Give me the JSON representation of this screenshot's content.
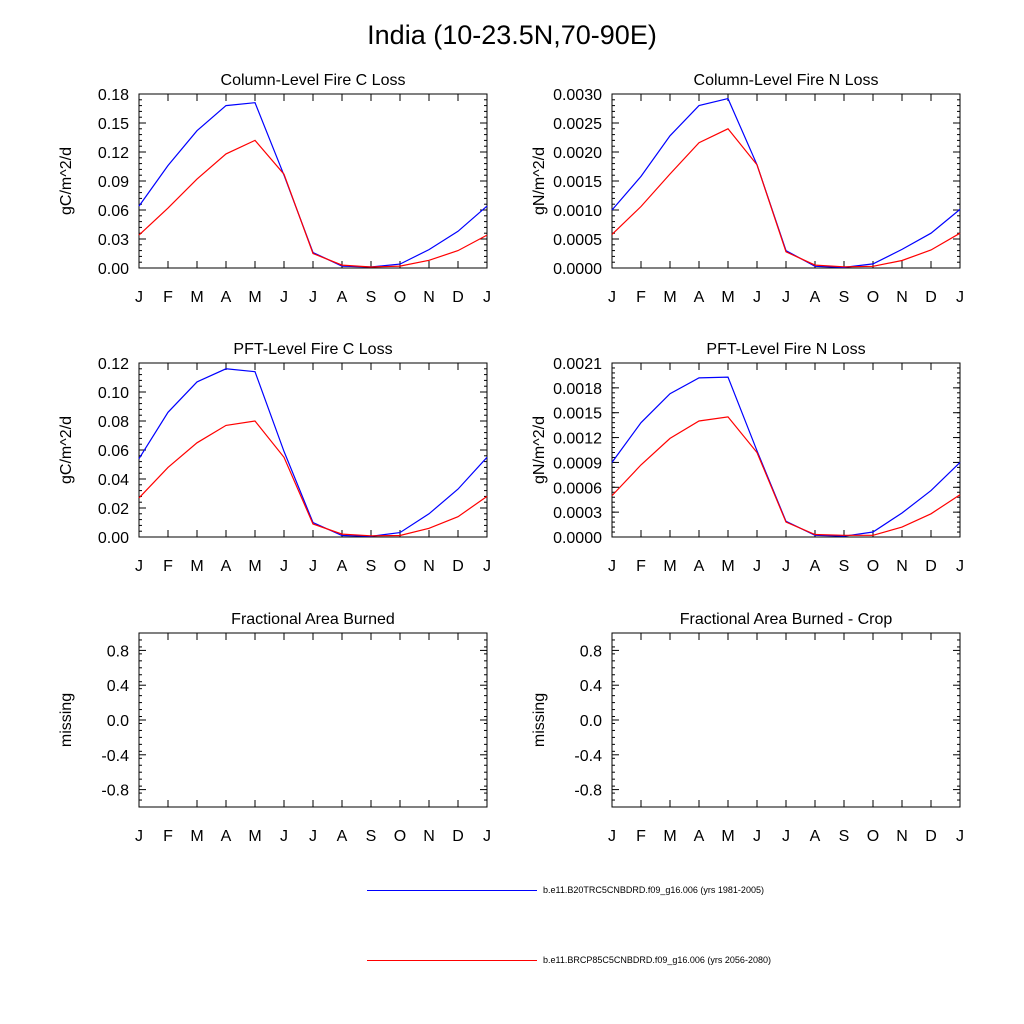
{
  "title": "India (10-23.5N,70-90E)",
  "months": [
    "J",
    "F",
    "M",
    "A",
    "M",
    "J",
    "J",
    "A",
    "S",
    "O",
    "N",
    "D",
    "J"
  ],
  "colors": {
    "series1": "#0000ff",
    "series2": "#ff0000"
  },
  "legend": [
    {
      "label": "b.e11.B20TRC5CNBDRD.f09_g16.006 (yrs 1981-2005)",
      "color": "#0000ff"
    },
    {
      "label": "b.e11.BRCP85C5CNBDRD.f09_g16.006 (yrs 2056-2080)",
      "color": "#ff0000"
    }
  ],
  "chart_data": [
    {
      "type": "line",
      "title": "Column-Level Fire C Loss",
      "ylabel": "gC/m^2/d",
      "ylim": [
        0,
        0.18
      ],
      "yticks": [
        "0.00",
        "0.03",
        "0.06",
        "0.09",
        "0.12",
        "0.15",
        "0.18"
      ],
      "yvalues": [
        0,
        0.03,
        0.06,
        0.09,
        0.12,
        0.15,
        0.18
      ],
      "series": [
        {
          "name": "b.e11.B20TRC5CNBDRD.f09_g16.006 (yrs 1981-2005)",
          "values": [
            0.064,
            0.106,
            0.142,
            0.168,
            0.171,
            0.096,
            0.016,
            0.002,
            0.001,
            0.004,
            0.019,
            0.038,
            0.064
          ]
        },
        {
          "name": "b.e11.BRCP85C5CNBDRD.f09_g16.006 (yrs 2056-2080)",
          "values": [
            0.034,
            0.062,
            0.092,
            0.118,
            0.132,
            0.097,
            0.015,
            0.003,
            0.001,
            0.002,
            0.008,
            0.018,
            0.034
          ]
        }
      ]
    },
    {
      "type": "line",
      "title": "Column-Level Fire N Loss",
      "ylabel": "gN/m^2/d",
      "ylim": [
        0,
        0.003
      ],
      "yticks": [
        "0.0000",
        "0.0005",
        "0.0010",
        "0.0015",
        "0.0020",
        "0.0025",
        "0.0030"
      ],
      "yvalues": [
        0,
        0.0005,
        0.001,
        0.0015,
        0.002,
        0.0025,
        0.003
      ],
      "series": [
        {
          "name": "b.e11.B20TRC5CNBDRD.f09_g16.006 (yrs 1981-2005)",
          "values": [
            0.001,
            0.00158,
            0.00228,
            0.0028,
            0.00292,
            0.00178,
            0.0003,
            3e-05,
            1e-05,
            7e-05,
            0.00032,
            0.0006,
            0.00101
          ]
        },
        {
          "name": "b.e11.BRCP85C5CNBDRD.f09_g16.006 (yrs 2056-2080)",
          "values": [
            0.00058,
            0.00106,
            0.00162,
            0.00216,
            0.0024,
            0.00178,
            0.00028,
            5e-05,
            2e-05,
            3e-05,
            0.00013,
            0.00031,
            0.0006
          ]
        }
      ]
    },
    {
      "type": "line",
      "title": "PFT-Level Fire C Loss",
      "ylabel": "gC/m^2/d",
      "ylim": [
        0,
        0.12
      ],
      "yticks": [
        "0.00",
        "0.02",
        "0.04",
        "0.06",
        "0.08",
        "0.10",
        "0.12"
      ],
      "yvalues": [
        0,
        0.02,
        0.04,
        0.06,
        0.08,
        0.1,
        0.12
      ],
      "series": [
        {
          "name": "b.e11.B20TRC5CNBDRD.f09_g16.006 (yrs 1981-2005)",
          "values": [
            0.054,
            0.086,
            0.107,
            0.116,
            0.114,
            0.059,
            0.01,
            0.001,
            0.0005,
            0.003,
            0.016,
            0.033,
            0.055
          ]
        },
        {
          "name": "b.e11.BRCP85C5CNBDRD.f09_g16.006 (yrs 2056-2080)",
          "values": [
            0.027,
            0.048,
            0.065,
            0.077,
            0.08,
            0.055,
            0.009,
            0.002,
            0.0008,
            0.001,
            0.006,
            0.014,
            0.028
          ]
        }
      ]
    },
    {
      "type": "line",
      "title": "PFT-Level Fire N Loss",
      "ylabel": "gN/m^2/d",
      "ylim": [
        0,
        0.0021
      ],
      "yticks": [
        "0.0000",
        "0.0003",
        "0.0006",
        "0.0009",
        "0.0012",
        "0.0015",
        "0.0018",
        "0.0021"
      ],
      "yvalues": [
        0,
        0.0003,
        0.0006,
        0.0009,
        0.0012,
        0.0015,
        0.0018,
        0.0021
      ],
      "series": [
        {
          "name": "b.e11.B20TRC5CNBDRD.f09_g16.006 (yrs 1981-2005)",
          "values": [
            0.0009,
            0.00138,
            0.00173,
            0.00192,
            0.00193,
            0.00104,
            0.00019,
            2e-05,
            1e-05,
            6e-05,
            0.00029,
            0.00056,
            0.0009
          ]
        },
        {
          "name": "b.e11.BRCP85C5CNBDRD.f09_g16.006 (yrs 2056-2080)",
          "values": [
            0.0005,
            0.00087,
            0.00119,
            0.0014,
            0.00145,
            0.00102,
            0.00018,
            3e-05,
            2e-05,
            2e-05,
            0.00012,
            0.00028,
            0.00051
          ]
        }
      ]
    },
    {
      "type": "line",
      "title": "Fractional Area Burned",
      "ylabel": "missing",
      "ylim": [
        -1,
        1
      ],
      "yticks": [
        "-0.8",
        "-0.4",
        "0.0",
        "0.4",
        "0.8"
      ],
      "yvalues": [
        -0.8,
        -0.4,
        0.0,
        0.4,
        0.8
      ],
      "series": []
    },
    {
      "type": "line",
      "title": "Fractional Area Burned - Crop",
      "ylabel": "missing",
      "ylim": [
        -1,
        1
      ],
      "yticks": [
        "-0.8",
        "-0.4",
        "0.0",
        "0.4",
        "0.8"
      ],
      "yvalues": [
        -0.8,
        -0.4,
        0.0,
        0.4,
        0.8
      ],
      "series": []
    }
  ]
}
